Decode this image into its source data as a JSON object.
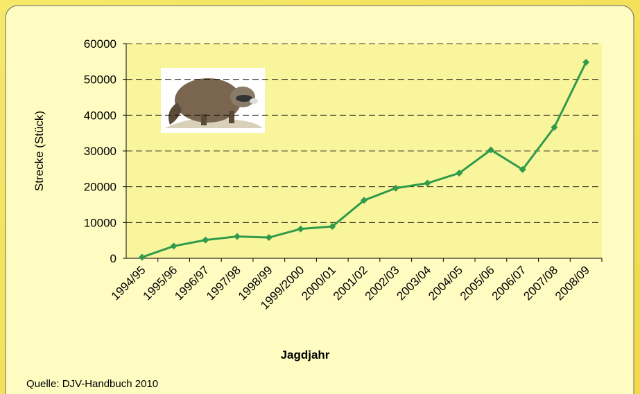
{
  "chart_data": {
    "type": "line",
    "x_label": "Jagdjahr",
    "y_label": "Strecke (Stück)",
    "source": "Quelle: DJV-Handbuch 2010",
    "categories": [
      "1994/95",
      "1995/96",
      "1996/97",
      "1997/98",
      "1998/99",
      "1999/2000",
      "2000/01",
      "2001/02",
      "2002/03",
      "2003/04",
      "2004/05",
      "2005/06",
      "2006/07",
      "2007/08",
      "2008/09"
    ],
    "series": [
      {
        "name": "Strecke",
        "color": "#2f9b4b",
        "values": [
          300,
          3400,
          5100,
          6100,
          5800,
          8200,
          8900,
          16200,
          19600,
          21000,
          23800,
          30300,
          24800,
          36600,
          54800
        ]
      }
    ],
    "ylim": [
      0,
      60000
    ],
    "yticks": [
      0,
      10000,
      20000,
      30000,
      40000,
      50000,
      60000
    ],
    "grid": true
  }
}
